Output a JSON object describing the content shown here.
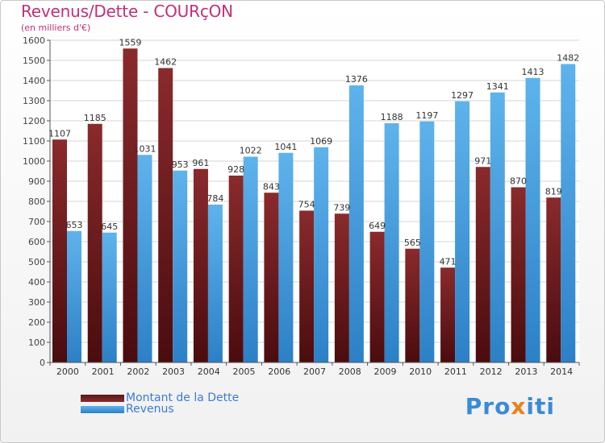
{
  "title": "Revenus/Dette - COURçON",
  "subtitle": "(en milliers d'€)",
  "colors": {
    "dette": "#7b2426",
    "dette_dark": "#4a1012",
    "revenus": "#5aace6",
    "revenus_dark": "#2f86cc",
    "title": "#c0307a"
  },
  "legend": {
    "dette_label": "Montant de la Dette",
    "revenus_label": "Revenus"
  },
  "logo": {
    "text_a": "Pro",
    "text_x": "x",
    "text_b": "iti"
  },
  "chart_data": {
    "type": "bar",
    "title": "Revenus/Dette - COURçON",
    "subtitle": "(en milliers d'€)",
    "categories": [
      "2000",
      "2001",
      "2002",
      "2003",
      "2004",
      "2005",
      "2006",
      "2007",
      "2008",
      "2009",
      "2010",
      "2011",
      "2012",
      "2013",
      "2014"
    ],
    "series": [
      {
        "name": "Montant de la Dette",
        "values": [
          1107,
          1185,
          1559,
          1462,
          961,
          928,
          843,
          754,
          739,
          649,
          565,
          471,
          971,
          870,
          819
        ]
      },
      {
        "name": "Revenus",
        "values": [
          653,
          645,
          1031,
          953,
          784,
          1022,
          1041,
          1069,
          1376,
          1188,
          1197,
          1297,
          1341,
          1413,
          1482
        ]
      }
    ],
    "ylim": [
      0,
      1600
    ],
    "yticks": [
      0,
      100,
      200,
      300,
      400,
      500,
      600,
      700,
      800,
      900,
      1000,
      1100,
      1200,
      1300,
      1400,
      1500,
      1600
    ],
    "grid": true,
    "legend_position": "bottom-left"
  }
}
